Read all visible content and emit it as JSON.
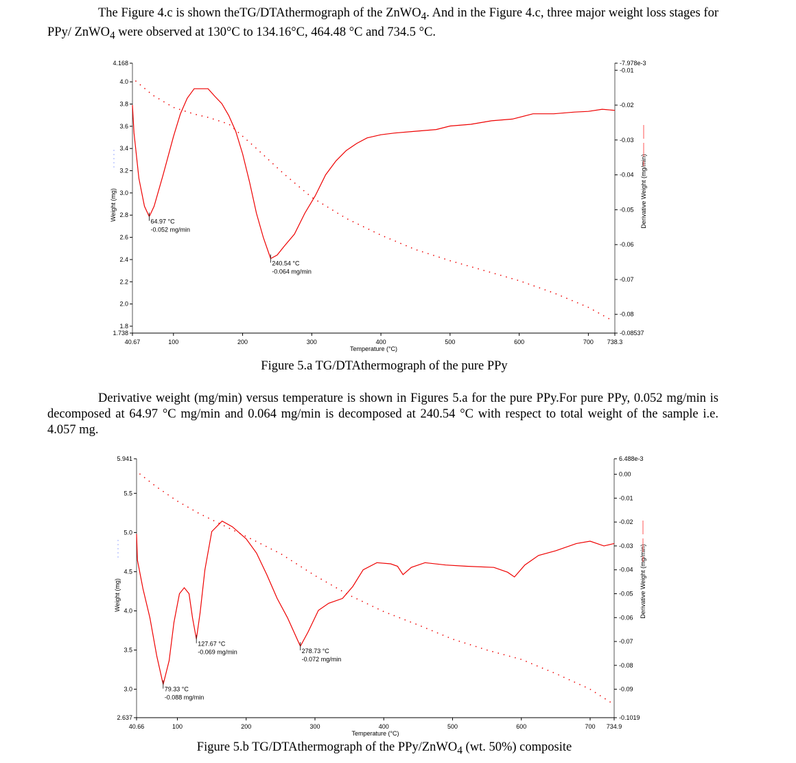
{
  "para1": {
    "before": "The Figure 4.c is shown theTG/DTAthermograph of the ZnWO",
    "sub": "4",
    "middle": ". And in the Figure 4.c, three major weight loss stages for PPy/ ZnWO",
    "sub2": "4",
    "after": " were observed at 130°C to 134.16°C, 464.48 °C and 734.5 °C."
  },
  "para2": "Derivative weight (mg/min) versus temperature is shown in Figures 5.a for the pure PPy.For pure PPy, 0.052 mg/min is decomposed at 64.97 °C mg/min and 0.064 mg/min is decomposed at 240.54 °C with respect to total weight of the sample i.e. 4.057 mg.",
  "caption1": "Figure 5.a TG/DTAthermograph of the pure PPy",
  "caption2_before": "Figure 5.b TG/DTAthermograph of the PPy/ZnWO",
  "caption2_sub": "4",
  "caption2_after": " (wt. 50%) composite",
  "chart_data": [
    {
      "type": "line",
      "title": "Figure 5.a TG/DTAthermograph of the pure PPy",
      "xlabel": "Temperature (°C)",
      "ylabel": "Weight (mg)",
      "y2label": "Derivative Weight (mg/min)",
      "xlim": [
        40.67,
        738.3
      ],
      "ylim": [
        1.738,
        4.168
      ],
      "y2lim": [
        -0.08537,
        -0.007978
      ],
      "xticks": [
        "40.67",
        "100",
        "200",
        "300",
        "400",
        "500",
        "600",
        "700",
        "738.3"
      ],
      "xtickvals": [
        40.67,
        100,
        200,
        300,
        400,
        500,
        600,
        700,
        738.3
      ],
      "yticks": [
        "4.168",
        "4.0",
        "3.8",
        "3.6",
        "3.4",
        "3.2",
        "3.0",
        "2.8",
        "2.6",
        "2.4",
        "2.2",
        "2.0",
        "1.8",
        "1.738"
      ],
      "ytickvals": [
        4.168,
        4.0,
        3.8,
        3.6,
        3.4,
        3.2,
        3.0,
        2.8,
        2.6,
        2.4,
        2.2,
        2.0,
        1.8,
        1.738
      ],
      "y2ticks": [
        "-7.978e-3",
        "-0.01",
        "-0.02",
        "-0.03",
        "-0.04",
        "-0.05",
        "-0.06",
        "-0.07",
        "-0.08",
        "-0.08537"
      ],
      "y2tickvals": [
        -0.007978,
        -0.01,
        -0.02,
        -0.03,
        -0.04,
        -0.05,
        -0.06,
        -0.07,
        -0.08,
        -0.08537
      ],
      "series": [
        {
          "name": "Weight (mg)",
          "axis": "left",
          "style": "dotted",
          "x": [
            45,
            70,
            100,
            130,
            150,
            180,
            220,
            260,
            300,
            350,
            400,
            450,
            500,
            550,
            600,
            650,
            700,
            735
          ],
          "y": [
            4.01,
            3.88,
            3.77,
            3.71,
            3.68,
            3.62,
            3.4,
            3.17,
            2.96,
            2.77,
            2.62,
            2.49,
            2.39,
            2.3,
            2.21,
            2.1,
            1.97,
            1.85
          ]
        },
        {
          "name": "Derivative Weight (mg/min)",
          "axis": "right",
          "style": "solid",
          "x": [
            40.67,
            43,
            50,
            58,
            64.97,
            72,
            85,
            100,
            110,
            120,
            130,
            150,
            160,
            170,
            180,
            190,
            200,
            210,
            220,
            230,
            240.54,
            250,
            260,
            275,
            290,
            305,
            320,
            335,
            350,
            365,
            380,
            400,
            420,
            450,
            480,
            500,
            530,
            560,
            590,
            620,
            650,
            680,
            700,
            720,
            738.3
          ],
          "y": [
            -0.02,
            -0.028,
            -0.041,
            -0.049,
            -0.052,
            -0.049,
            -0.04,
            -0.029,
            -0.0225,
            -0.018,
            -0.0153,
            -0.0153,
            -0.0175,
            -0.0196,
            -0.023,
            -0.0275,
            -0.034,
            -0.042,
            -0.051,
            -0.058,
            -0.064,
            -0.063,
            -0.0605,
            -0.057,
            -0.051,
            -0.046,
            -0.04,
            -0.036,
            -0.033,
            -0.031,
            -0.0294,
            -0.0285,
            -0.028,
            -0.0275,
            -0.027,
            -0.026,
            -0.0255,
            -0.0245,
            -0.024,
            -0.0225,
            -0.0225,
            -0.022,
            -0.0218,
            -0.0212,
            -0.0215
          ]
        }
      ],
      "annotations": [
        {
          "x": 64.97,
          "y": -0.052,
          "line1": "64.97 °C",
          "line2": "-0.052 mg/min"
        },
        {
          "x": 240.54,
          "y": -0.064,
          "line1": "240.54 °C",
          "line2": "-0.064 mg/min"
        }
      ]
    },
    {
      "type": "line",
      "title": "Figure 5.b TG/DTAthermograph of the PPy/ZnWO4 (wt. 50%) composite",
      "xlabel": "Temperature (°C)",
      "ylabel": "Weight (mg)",
      "y2label": "Derivative Weight (mg/min)",
      "xlim": [
        40.66,
        734.9
      ],
      "ylim": [
        2.637,
        5.941
      ],
      "y2lim": [
        -0.1019,
        0.006488
      ],
      "xticks": [
        "40.66",
        "100",
        "200",
        "300",
        "400",
        "500",
        "600",
        "700",
        "734.9"
      ],
      "xtickvals": [
        40.66,
        100,
        200,
        300,
        400,
        500,
        600,
        700,
        734.9
      ],
      "yticks": [
        "5.941",
        "5.5",
        "5.0",
        "4.5",
        "4.0",
        "3.5",
        "3.0",
        "2.637"
      ],
      "ytickvals": [
        5.941,
        5.5,
        5.0,
        4.5,
        4.0,
        3.5,
        3.0,
        2.637
      ],
      "y2ticks": [
        "6.488e-3",
        "0.00",
        "-0.01",
        "-0.02",
        "-0.03",
        "-0.04",
        "-0.05",
        "-0.06",
        "-0.07",
        "-0.08",
        "-0.09",
        "-0.1019"
      ],
      "y2tickvals": [
        0.006488,
        0,
        -0.01,
        -0.02,
        -0.03,
        -0.04,
        -0.05,
        -0.06,
        -0.07,
        -0.08,
        -0.09,
        -0.1019
      ],
      "series": [
        {
          "name": "Weight (mg)",
          "axis": "left",
          "style": "dotted",
          "x": [
            45,
            70,
            100,
            130,
            160,
            200,
            250,
            300,
            350,
            400,
            450,
            500,
            550,
            600,
            650,
            700,
            734
          ],
          "y": [
            5.75,
            5.58,
            5.4,
            5.25,
            5.12,
            4.95,
            4.73,
            4.45,
            4.2,
            3.99,
            3.82,
            3.64,
            3.5,
            3.38,
            3.2,
            3.0,
            2.81
          ]
        },
        {
          "name": "Derivative Weight (mg/min)",
          "axis": "right",
          "style": "solid",
          "x": [
            40.66,
            42,
            50,
            60,
            70,
            79.33,
            88,
            95,
            103,
            110,
            117,
            122,
            127.67,
            133,
            140,
            150,
            165,
            180,
            200,
            215,
            230,
            245,
            260,
            278.73,
            290,
            305,
            320,
            340,
            355,
            370,
            390,
            410,
            420,
            428,
            440,
            460,
            490,
            520,
            560,
            580,
            590,
            605,
            625,
            650,
            680,
            700,
            720,
            734.9
          ],
          "y": [
            -0.025,
            -0.036,
            -0.048,
            -0.06,
            -0.076,
            -0.088,
            -0.078,
            -0.062,
            -0.05,
            -0.0475,
            -0.05,
            -0.06,
            -0.069,
            -0.058,
            -0.04,
            -0.024,
            -0.0196,
            -0.022,
            -0.027,
            -0.033,
            -0.042,
            -0.052,
            -0.06,
            -0.072,
            -0.066,
            -0.057,
            -0.054,
            -0.052,
            -0.047,
            -0.04,
            -0.037,
            -0.0375,
            -0.0385,
            -0.042,
            -0.039,
            -0.037,
            -0.038,
            -0.0385,
            -0.039,
            -0.041,
            -0.043,
            -0.038,
            -0.034,
            -0.032,
            -0.029,
            -0.028,
            -0.03,
            -0.029
          ]
        }
      ],
      "annotations": [
        {
          "x": 79.33,
          "y": -0.088,
          "line1": "79.33 °C",
          "line2": "-0.088 mg/min"
        },
        {
          "x": 127.67,
          "y": -0.069,
          "line1": "127.67 °C",
          "line2": "-0.069 mg/min"
        },
        {
          "x": 278.73,
          "y": -0.072,
          "line1": "278.73 °C",
          "line2": "-0.072 mg/min"
        }
      ]
    }
  ]
}
